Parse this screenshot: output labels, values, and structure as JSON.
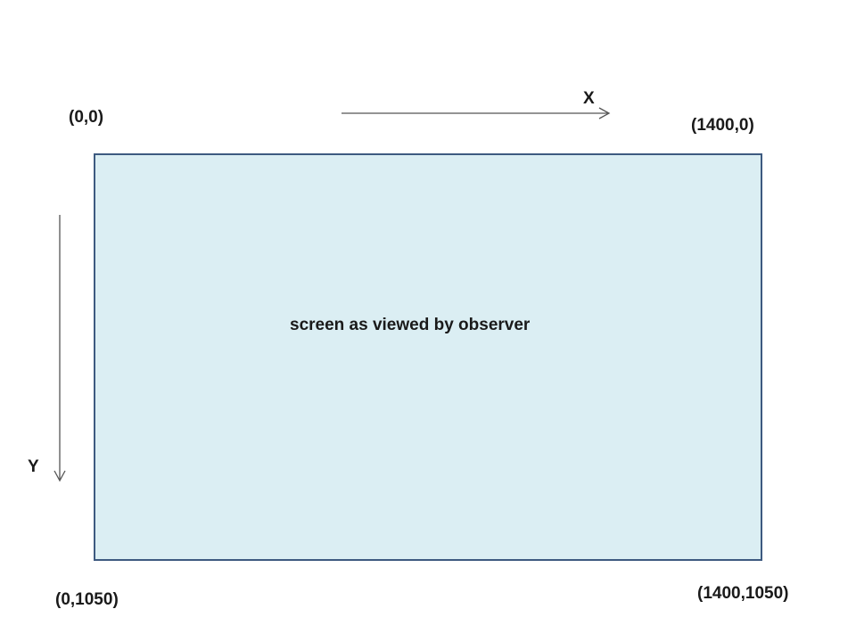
{
  "diagram": {
    "axis_x_label": "X",
    "axis_y_label": "Y",
    "screen_caption": "screen as viewed by observer",
    "corners": {
      "top_left": "(0,0)",
      "top_right": "(1400,0)",
      "bottom_left": "(0,1050)",
      "bottom_right": "(1400,1050)"
    },
    "colors": {
      "screen_fill": "#dbeef3",
      "screen_border": "#3d5a80",
      "arrow": "#555555",
      "text": "#1a1a1a"
    }
  }
}
